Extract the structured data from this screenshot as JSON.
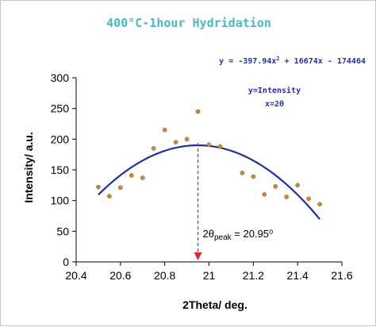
{
  "chart_data": {
    "type": "scatter",
    "title": "400°C-1hour Hydridation",
    "equation": "y = -397.94x² + 16674x - 174464",
    "legend_lines": [
      "y=Intensity",
      "x=2θ"
    ],
    "xlabel": "2Theta/ deg.",
    "ylabel": "Intensity/ a.u.",
    "xlim": [
      20.4,
      21.6
    ],
    "ylim": [
      0,
      300
    ],
    "x_ticks": [
      20.4,
      20.6,
      20.8,
      21,
      21.2,
      21.4,
      21.6
    ],
    "x_tick_labels": [
      "20.4",
      "20.6",
      "20.8",
      "21",
      "21.2",
      "21.4",
      "21.6"
    ],
    "y_ticks": [
      0,
      50,
      100,
      150,
      200,
      250,
      300
    ],
    "y_tick_labels": [
      "0",
      "50",
      "100",
      "150",
      "200",
      "250",
      "300"
    ],
    "grid": false,
    "series": [
      {
        "type": "scatter",
        "color": "#c98a3c",
        "points": [
          [
            20.5,
            122
          ],
          [
            20.55,
            107
          ],
          [
            20.6,
            121
          ],
          [
            20.65,
            141
          ],
          [
            20.7,
            137
          ],
          [
            20.75,
            185
          ],
          [
            20.8,
            215
          ],
          [
            20.85,
            195
          ],
          [
            20.9,
            200
          ],
          [
            20.95,
            245
          ],
          [
            21.0,
            191
          ],
          [
            21.05,
            188
          ],
          [
            21.15,
            145
          ],
          [
            21.2,
            139
          ],
          [
            21.25,
            110
          ],
          [
            21.3,
            123
          ],
          [
            21.35,
            106
          ],
          [
            21.4,
            125
          ],
          [
            21.45,
            103
          ],
          [
            21.5,
            94
          ]
        ]
      },
      {
        "type": "fit",
        "color": "#1f2fa0",
        "x_range": [
          20.5,
          21.5
        ],
        "coefficients": {
          "a": -397.94,
          "b": 16674,
          "c": -174464
        },
        "vertex_x": 20.95,
        "vertex_y": 190
      }
    ],
    "annotation": {
      "x": 20.95,
      "text_main": "2θ",
      "text_sub": "peak",
      "text_value": " = 20.95⁰",
      "arrow_color": "#e0262a"
    },
    "colors": {
      "title": "#49b8bf",
      "equation": "#2630a6",
      "legend": "#2630a6",
      "marker_fill": "#c98a3c",
      "fit_line": "#1f2fa0",
      "arrow": "#e0262a",
      "axis": "#000000"
    }
  }
}
